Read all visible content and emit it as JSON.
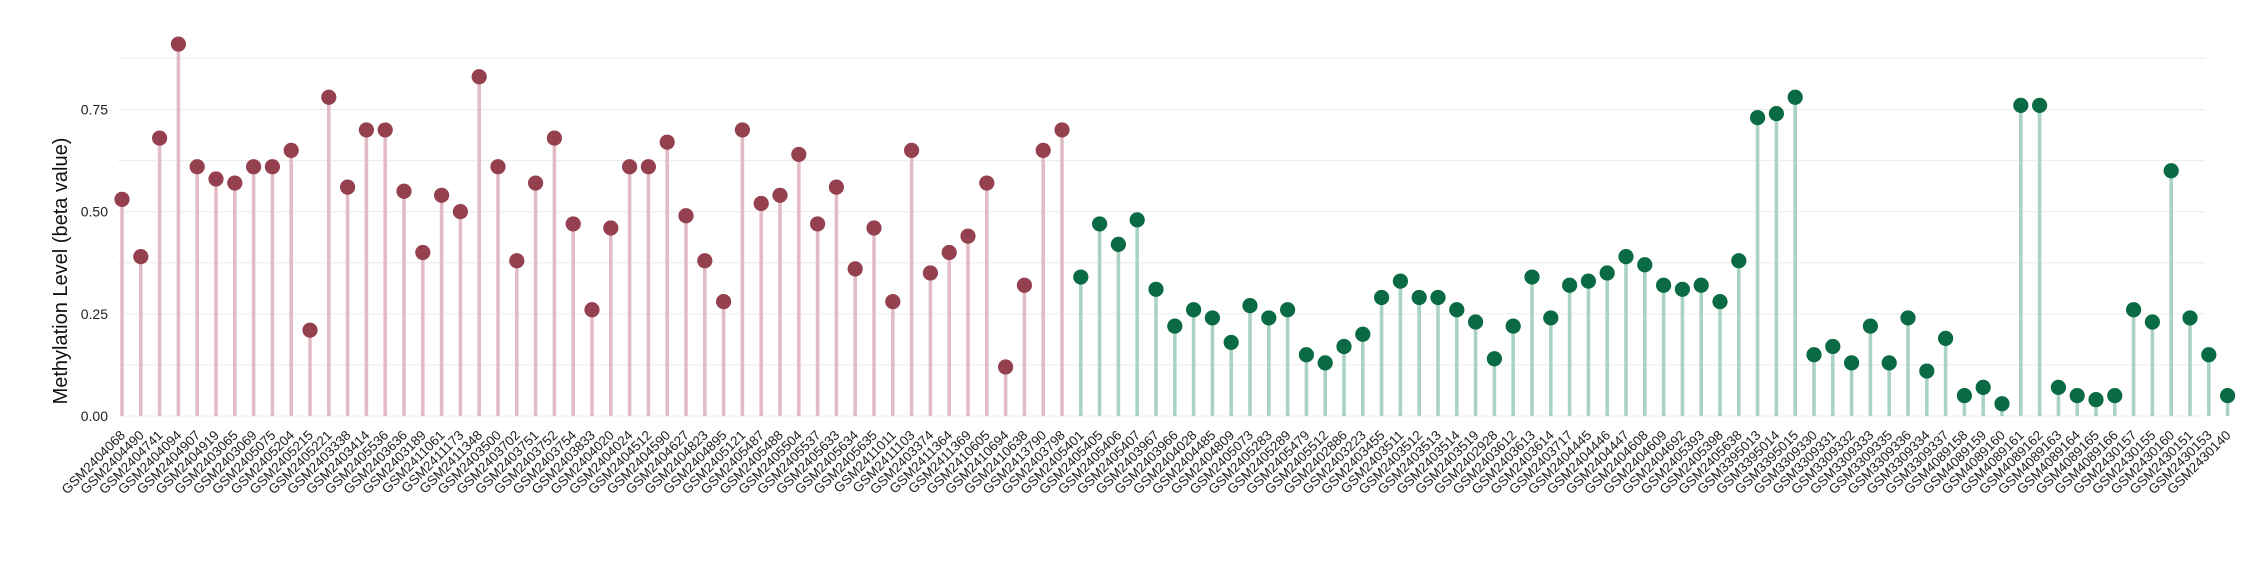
{
  "chart_data": {
    "type": "lollipop",
    "ylabel": "Methylation Level (beta value)",
    "xlabel": "",
    "ylim": [
      0,
      0.92
    ],
    "yticks": [
      0.0,
      0.25,
      0.5,
      0.75
    ],
    "ytick_labels": [
      "0.00",
      "0.25",
      "0.50",
      "0.75"
    ],
    "grid": "horizontal",
    "legend": "none",
    "colors": {
      "group_a_stem": "#e2bcc5",
      "group_a_dot": "#94404f",
      "group_b_stem": "#a9d3c3",
      "group_b_dot": "#0a6a44"
    },
    "series": [
      {
        "color_key": "group_a",
        "points": [
          {
            "x": "GSM2404068",
            "y": 0.53
          },
          {
            "x": "GSM2404490",
            "y": 0.39
          },
          {
            "x": "GSM2404741",
            "y": 0.68
          },
          {
            "x": "GSM2404094",
            "y": 0.91
          },
          {
            "x": "GSM2404907",
            "y": 0.61
          },
          {
            "x": "GSM2404919",
            "y": 0.58
          },
          {
            "x": "GSM2403065",
            "y": 0.57
          },
          {
            "x": "GSM2403069",
            "y": 0.61
          },
          {
            "x": "GSM2405075",
            "y": 0.61
          },
          {
            "x": "GSM2405204",
            "y": 0.65
          },
          {
            "x": "GSM2405215",
            "y": 0.21
          },
          {
            "x": "GSM2405221",
            "y": 0.78
          },
          {
            "x": "GSM2403338",
            "y": 0.56
          },
          {
            "x": "GSM2403414",
            "y": 0.7
          },
          {
            "x": "GSM2405536",
            "y": 0.7
          },
          {
            "x": "GSM2403636",
            "y": 0.55
          },
          {
            "x": "GSM2403189",
            "y": 0.4
          },
          {
            "x": "GSM2411061",
            "y": 0.54
          },
          {
            "x": "GSM2411173",
            "y": 0.5
          },
          {
            "x": "GSM2411348",
            "y": 0.83
          },
          {
            "x": "GSM2403500",
            "y": 0.61
          },
          {
            "x": "GSM2403702",
            "y": 0.38
          },
          {
            "x": "GSM2403751",
            "y": 0.57
          },
          {
            "x": "GSM2403752",
            "y": 0.68
          },
          {
            "x": "GSM2403754",
            "y": 0.47
          },
          {
            "x": "GSM2403833",
            "y": 0.26
          },
          {
            "x": "GSM2404020",
            "y": 0.46
          },
          {
            "x": "GSM2404024",
            "y": 0.61
          },
          {
            "x": "GSM2404512",
            "y": 0.61
          },
          {
            "x": "GSM2404590",
            "y": 0.67
          },
          {
            "x": "GSM2404627",
            "y": 0.49
          },
          {
            "x": "GSM2404823",
            "y": 0.38
          },
          {
            "x": "GSM2404895",
            "y": 0.28
          },
          {
            "x": "GSM2405121",
            "y": 0.7
          },
          {
            "x": "GSM2405487",
            "y": 0.52
          },
          {
            "x": "GSM2405488",
            "y": 0.54
          },
          {
            "x": "GSM2405504",
            "y": 0.64
          },
          {
            "x": "GSM2405537",
            "y": 0.47
          },
          {
            "x": "GSM2405633",
            "y": 0.56
          },
          {
            "x": "GSM2405634",
            "y": 0.36
          },
          {
            "x": "GSM2405635",
            "y": 0.46
          },
          {
            "x": "GSM2411011",
            "y": 0.28
          },
          {
            "x": "GSM2411103",
            "y": 0.65
          },
          {
            "x": "GSM2403374",
            "y": 0.35
          },
          {
            "x": "GSM2411364",
            "y": 0.4
          },
          {
            "x": "GSM2411369",
            "y": 0.44
          },
          {
            "x": "GSM2410605",
            "y": 0.57
          },
          {
            "x": "GSM2410694",
            "y": 0.12
          },
          {
            "x": "GSM2410638",
            "y": 0.32
          },
          {
            "x": "GSM2413790",
            "y": 0.65
          },
          {
            "x": "GSM2403798",
            "y": 0.7
          }
        ]
      },
      {
        "color_key": "group_b",
        "points": [
          {
            "x": "GSM2405401",
            "y": 0.34
          },
          {
            "x": "GSM2405405",
            "y": 0.47
          },
          {
            "x": "GSM2405406",
            "y": 0.42
          },
          {
            "x": "GSM2405407",
            "y": 0.48
          },
          {
            "x": "GSM2403967",
            "y": 0.31
          },
          {
            "x": "GSM2403966",
            "y": 0.22
          },
          {
            "x": "GSM2404028",
            "y": 0.26
          },
          {
            "x": "GSM2404485",
            "y": 0.24
          },
          {
            "x": "GSM2404809",
            "y": 0.18
          },
          {
            "x": "GSM2405073",
            "y": 0.27
          },
          {
            "x": "GSM2405283",
            "y": 0.24
          },
          {
            "x": "GSM2405289",
            "y": 0.26
          },
          {
            "x": "GSM2405479",
            "y": 0.15
          },
          {
            "x": "GSM2405512",
            "y": 0.13
          },
          {
            "x": "GSM2402886",
            "y": 0.17
          },
          {
            "x": "GSM2403223",
            "y": 0.2
          },
          {
            "x": "GSM2403455",
            "y": 0.29
          },
          {
            "x": "GSM2403511",
            "y": 0.33
          },
          {
            "x": "GSM2403512",
            "y": 0.29
          },
          {
            "x": "GSM2403513",
            "y": 0.29
          },
          {
            "x": "GSM2403514",
            "y": 0.26
          },
          {
            "x": "GSM2403519",
            "y": 0.23
          },
          {
            "x": "GSM2402928",
            "y": 0.14
          },
          {
            "x": "GSM2403612",
            "y": 0.22
          },
          {
            "x": "GSM2403613",
            "y": 0.34
          },
          {
            "x": "GSM2403614",
            "y": 0.24
          },
          {
            "x": "GSM2403717",
            "y": 0.32
          },
          {
            "x": "GSM2404445",
            "y": 0.33
          },
          {
            "x": "GSM2404446",
            "y": 0.35
          },
          {
            "x": "GSM2404447",
            "y": 0.39
          },
          {
            "x": "GSM2404608",
            "y": 0.37
          },
          {
            "x": "GSM2404609",
            "y": 0.32
          },
          {
            "x": "GSM2404692",
            "y": 0.31
          },
          {
            "x": "GSM2405393",
            "y": 0.32
          },
          {
            "x": "GSM2405398",
            "y": 0.28
          },
          {
            "x": "GSM2405638",
            "y": 0.38
          },
          {
            "x": "GSM3395013",
            "y": 0.73
          },
          {
            "x": "GSM3395014",
            "y": 0.74
          },
          {
            "x": "GSM3395015",
            "y": 0.78
          },
          {
            "x": "GSM3309330",
            "y": 0.15
          },
          {
            "x": "GSM3309331",
            "y": 0.17
          },
          {
            "x": "GSM3309332",
            "y": 0.13
          },
          {
            "x": "GSM3309333",
            "y": 0.22
          },
          {
            "x": "GSM3309335",
            "y": 0.13
          },
          {
            "x": "GSM3309336",
            "y": 0.24
          },
          {
            "x": "GSM3309334",
            "y": 0.11
          },
          {
            "x": "GSM3309337",
            "y": 0.19
          },
          {
            "x": "GSM4089158",
            "y": 0.05
          },
          {
            "x": "GSM4089159",
            "y": 0.07
          },
          {
            "x": "GSM4089160",
            "y": 0.03
          },
          {
            "x": "GSM4089161",
            "y": 0.76
          },
          {
            "x": "GSM4089162",
            "y": 0.76
          },
          {
            "x": "GSM4089163",
            "y": 0.07
          },
          {
            "x": "GSM4089164",
            "y": 0.05
          },
          {
            "x": "GSM4089165",
            "y": 0.04
          },
          {
            "x": "GSM4089166",
            "y": 0.05
          },
          {
            "x": "GSM2430157",
            "y": 0.26
          },
          {
            "x": "GSM2430155",
            "y": 0.23
          },
          {
            "x": "GSM2430160",
            "y": 0.6
          },
          {
            "x": "GSM2430151",
            "y": 0.24
          },
          {
            "x": "GSM2430153",
            "y": 0.15
          },
          {
            "x": "GSM2430140",
            "y": 0.05
          }
        ]
      }
    ]
  }
}
